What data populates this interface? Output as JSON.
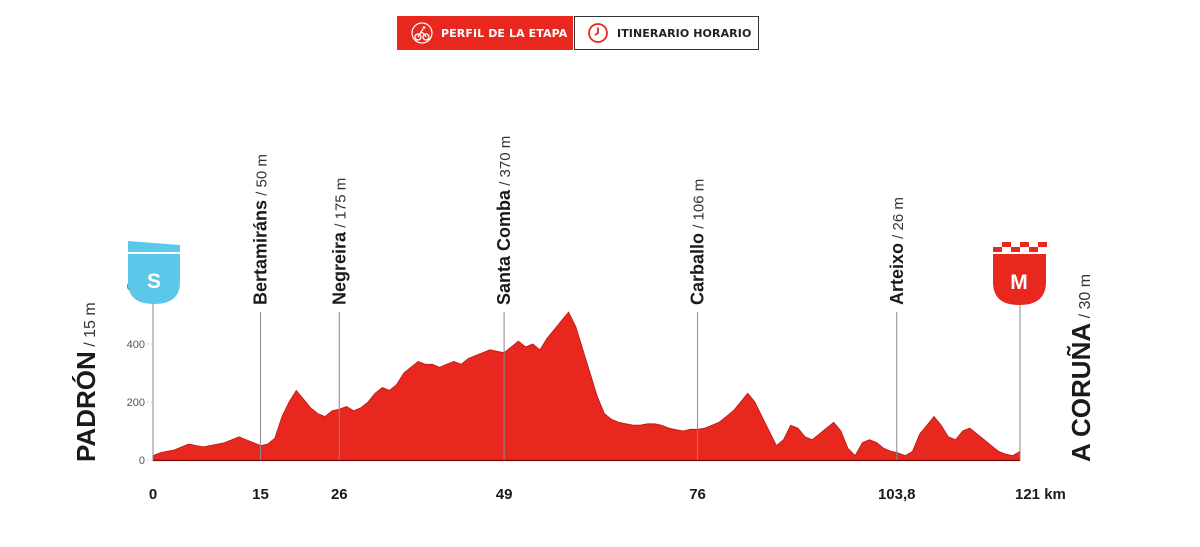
{
  "tabs": {
    "profile_label": "PERFIL DE LA ETAPA",
    "schedule_label": "ITINERARIO HORARIO",
    "profile_icon": "cyclist-icon",
    "schedule_icon": "clock-icon"
  },
  "start": {
    "name": "Padrón",
    "alt": "15 m",
    "badge": "S",
    "badge_color": "#5bc8ea"
  },
  "finish": {
    "name": "A Coruña",
    "alt": "30 m",
    "badge": "M",
    "badge_color": "#e8281e"
  },
  "colors": {
    "profile": "#e8281e",
    "axis": "#888888"
  },
  "chart_data": {
    "type": "area",
    "x_unit": "km",
    "y_unit": "m",
    "ylim": [
      0,
      700
    ],
    "yticks": [
      0,
      200,
      400,
      600
    ],
    "xticks": [
      {
        "value": 0,
        "label": "0"
      },
      {
        "value": 15,
        "label": "15"
      },
      {
        "value": 26,
        "label": "26"
      },
      {
        "value": 49,
        "label": "49"
      },
      {
        "value": 76,
        "label": "76"
      },
      {
        "value": 103.8,
        "label": "103,8"
      },
      {
        "value": 121,
        "label": "121 km"
      }
    ],
    "waypoints": [
      {
        "name": "Bertamiráns",
        "alt": "50 m",
        "km": 15
      },
      {
        "name": "Negreira",
        "alt": "175 m",
        "km": 26
      },
      {
        "name": "Santa Comba",
        "alt": "370 m",
        "km": 49
      },
      {
        "name": "Carballo",
        "alt": "106 m",
        "km": 76
      },
      {
        "name": "Arteixo",
        "alt": "26 m",
        "km": 103.8
      }
    ],
    "x": [
      0,
      1,
      2,
      3,
      4,
      5,
      6,
      7,
      8,
      9,
      10,
      11,
      12,
      13,
      14,
      15,
      16,
      17,
      18,
      19,
      20,
      21,
      22,
      23,
      24,
      25,
      26,
      27,
      28,
      29,
      30,
      31,
      32,
      33,
      34,
      35,
      36,
      37,
      38,
      39,
      40,
      41,
      42,
      43,
      44,
      45,
      46,
      47,
      48,
      49,
      50,
      51,
      52,
      53,
      54,
      55,
      56,
      57,
      58,
      59,
      60,
      61,
      62,
      63,
      64,
      65,
      66,
      67,
      68,
      69,
      70,
      71,
      72,
      73,
      74,
      75,
      76,
      77,
      78,
      79,
      80,
      81,
      82,
      83,
      84,
      85,
      86,
      87,
      88,
      89,
      90,
      91,
      92,
      93,
      94,
      95,
      96,
      97,
      98,
      99,
      100,
      101,
      102,
      103,
      103.8,
      105,
      106,
      107,
      108,
      109,
      110,
      111,
      112,
      113,
      114,
      115,
      116,
      117,
      118,
      119,
      120,
      121
    ],
    "y": [
      15,
      25,
      30,
      35,
      45,
      55,
      50,
      45,
      50,
      55,
      60,
      70,
      80,
      70,
      60,
      50,
      55,
      75,
      150,
      200,
      240,
      210,
      180,
      160,
      150,
      170,
      175,
      185,
      170,
      180,
      200,
      230,
      250,
      240,
      260,
      300,
      320,
      340,
      330,
      330,
      320,
      330,
      340,
      330,
      350,
      360,
      370,
      380,
      375,
      370,
      390,
      410,
      390,
      400,
      380,
      420,
      450,
      480,
      510,
      460,
      380,
      300,
      220,
      160,
      140,
      130,
      125,
      120,
      120,
      125,
      125,
      120,
      110,
      105,
      100,
      106,
      106,
      110,
      120,
      130,
      150,
      170,
      200,
      230,
      200,
      150,
      100,
      50,
      70,
      120,
      110,
      80,
      70,
      90,
      110,
      130,
      100,
      40,
      15,
      60,
      70,
      60,
      40,
      30,
      26,
      15,
      30,
      90,
      120,
      150,
      120,
      80,
      70,
      100,
      110,
      90,
      70,
      50,
      30,
      20,
      15,
      30
    ]
  }
}
